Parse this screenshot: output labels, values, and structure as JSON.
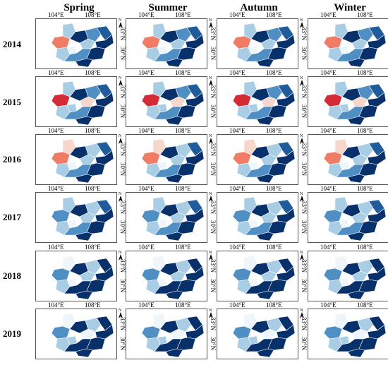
{
  "seasons": [
    "Spring",
    "Summer",
    "Autumn",
    "Winter"
  ],
  "years": [
    "2014",
    "2015",
    "2016",
    "2017",
    "2018",
    "2019"
  ],
  "lon_labels": [
    "104°E",
    "108°E"
  ],
  "lat_labels": [
    "33°N",
    "30°N"
  ],
  "north_label": "N",
  "colors": {
    "level_very_low": "#eff6fb",
    "level_low": "#a9cde4",
    "level_mid_low": "#4f8fc4",
    "level_mid": "#1f5c99",
    "level_high": "#08306b",
    "level_pale_red": "#f7d6cb",
    "level_red": "#f07c65",
    "level_deep_red": "#d42b35",
    "border": "#ffffff",
    "frame": "#555555"
  },
  "region_classes": {
    "2014": [
      "level_low",
      "level_red",
      "level_high",
      "level_mid_low",
      "level_low",
      "level_mid",
      "level_high",
      "level_very_low",
      "level_low",
      "level_mid_low",
      "level_high",
      "level_high"
    ],
    "2015": [
      "level_low",
      "level_deep_red",
      "level_high",
      "level_mid_low",
      "level_pale_red",
      "level_mid",
      "level_high",
      "level_low",
      "level_low",
      "level_mid_low",
      "level_high",
      "level_high"
    ],
    "2016": [
      "level_pale_red",
      "level_red",
      "level_high",
      "level_low",
      "level_low",
      "level_mid",
      "level_high",
      "level_very_low",
      "level_low",
      "level_mid_low",
      "level_high",
      "level_high"
    ],
    "2017": [
      "level_low",
      "level_mid_low",
      "level_high",
      "level_low",
      "level_low",
      "level_mid",
      "level_high",
      "level_very_low",
      "level_low",
      "level_mid_low",
      "level_high",
      "level_high"
    ],
    "2018": [
      "level_very_low",
      "level_mid_low",
      "level_high",
      "level_low",
      "level_low",
      "level_high",
      "level_high",
      "level_very_low",
      "level_low",
      "level_high",
      "level_high",
      "level_high"
    ],
    "2019": [
      "level_very_low",
      "level_mid_low",
      "level_high",
      "level_low",
      "level_very_low",
      "level_high",
      "level_high",
      "level_low",
      "level_low",
      "level_high",
      "level_high",
      "level_high"
    ]
  }
}
